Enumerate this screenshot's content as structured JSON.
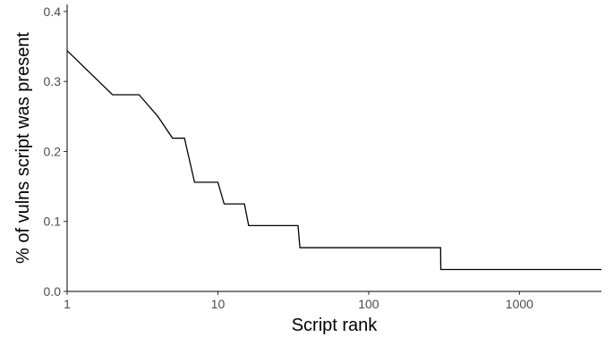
{
  "chart_data": {
    "type": "line",
    "step": true,
    "title": "",
    "xlabel": "Script rank",
    "ylabel": "% of vulns script was present",
    "xscale": "log",
    "xlim": [
      1,
      3500
    ],
    "ylim": [
      0,
      0.41
    ],
    "x_ticks": [
      1,
      10,
      100,
      1000
    ],
    "x_tick_labels": [
      "1",
      "10",
      "100",
      "1000"
    ],
    "y_ticks": [
      0,
      0.1,
      0.2,
      0.3,
      0.4
    ],
    "y_tick_labels": [
      "0.0",
      "0.1",
      "0.2",
      "0.3",
      "0.4"
    ],
    "grid": false,
    "legend": "none",
    "series": [
      {
        "color": "#000000",
        "points": [
          [
            1,
            0.344
          ],
          [
            2,
            0.281
          ],
          [
            3,
            0.281
          ],
          [
            4,
            0.25
          ],
          [
            5,
            0.219
          ],
          [
            6,
            0.219
          ],
          [
            7,
            0.156
          ],
          [
            10,
            0.156
          ],
          [
            11,
            0.125
          ],
          [
            15,
            0.125
          ],
          [
            16,
            0.094
          ],
          [
            34,
            0.094
          ],
          [
            35,
            0.0625
          ],
          [
            300,
            0.0625
          ],
          [
            301,
            0.03125
          ],
          [
            3500,
            0.03125
          ]
        ]
      }
    ]
  }
}
